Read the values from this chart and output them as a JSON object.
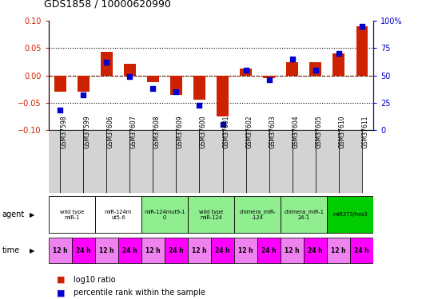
{
  "title": "GDS1858 / 10000620990",
  "samples": [
    "GSM37598",
    "GSM37599",
    "GSM37606",
    "GSM37607",
    "GSM37608",
    "GSM37609",
    "GSM37600",
    "GSM37601",
    "GSM37602",
    "GSM37603",
    "GSM37604",
    "GSM37605",
    "GSM37610",
    "GSM37611"
  ],
  "log10_ratio": [
    -0.03,
    -0.03,
    0.043,
    0.022,
    -0.012,
    -0.035,
    -0.045,
    -0.075,
    0.013,
    -0.005,
    0.025,
    0.025,
    0.04,
    0.09
  ],
  "percentile_rank": [
    18,
    32,
    62,
    49,
    38,
    35,
    23,
    5,
    55,
    46,
    65,
    55,
    70,
    95
  ],
  "agent_groups": [
    {
      "label": "wild type\nmiR-1",
      "cols": [
        0,
        1
      ],
      "color": "#ffffff"
    },
    {
      "label": "miR-124m\nut5-6",
      "cols": [
        2,
        3
      ],
      "color": "#ffffff"
    },
    {
      "label": "miR-124mut9-1\n0",
      "cols": [
        4,
        5
      ],
      "color": "#90ee90"
    },
    {
      "label": "wild type\nmiR-124",
      "cols": [
        6,
        7
      ],
      "color": "#90ee90"
    },
    {
      "label": "chimera_miR-\n-124",
      "cols": [
        8,
        9
      ],
      "color": "#90ee90"
    },
    {
      "label": "chimera_miR-1\n24-1",
      "cols": [
        10,
        11
      ],
      "color": "#90ee90"
    },
    {
      "label": "miR373/hes3",
      "cols": [
        12,
        13
      ],
      "color": "#00cc00"
    }
  ],
  "time_labels": [
    "12 h",
    "24 h",
    "12 h",
    "24 h",
    "12 h",
    "24 h",
    "12 h",
    "24 h",
    "12 h",
    "24 h",
    "12 h",
    "24 h",
    "12 h",
    "24 h"
  ],
  "time_colors_12": "#ee82ee",
  "time_colors_24": "#ff00ff",
  "bar_color": "#cc2200",
  "dot_color": "#0000cc",
  "ylim": [
    -0.1,
    0.1
  ],
  "y2lim": [
    0,
    100
  ],
  "yticks": [
    -0.1,
    -0.05,
    0,
    0.05,
    0.1
  ],
  "y2ticks": [
    0,
    25,
    50,
    75,
    100
  ],
  "y2ticklabels": [
    "0",
    "25",
    "50",
    "75",
    "100%"
  ]
}
